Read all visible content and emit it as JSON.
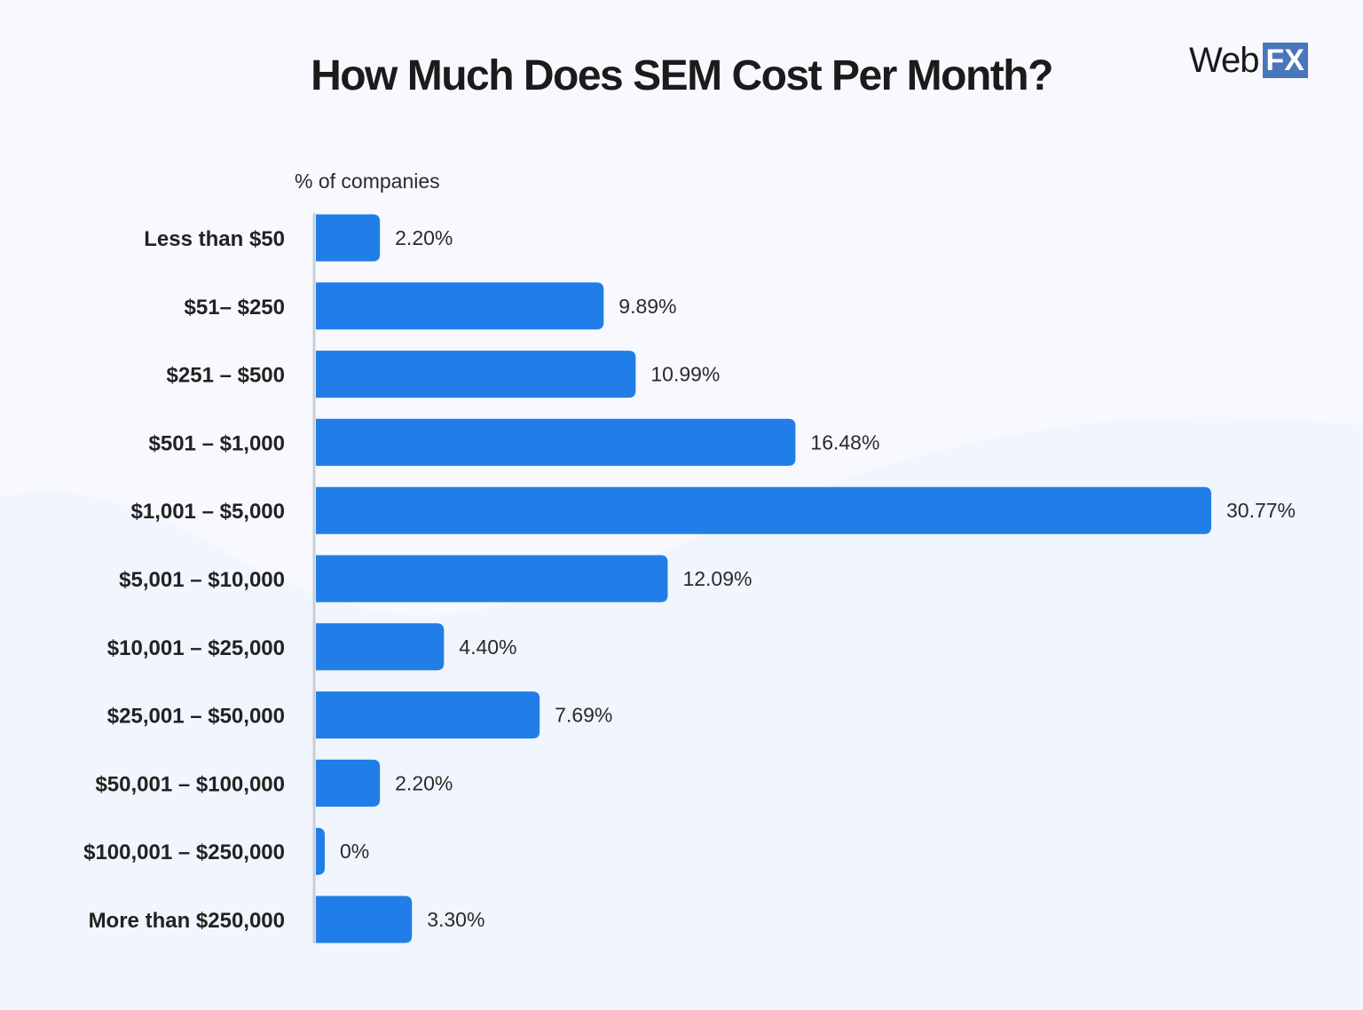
{
  "logo": {
    "text_dark": "Web",
    "text_box": "FX",
    "box_color": "#4a76bd"
  },
  "chart_data": {
    "type": "bar",
    "orientation": "horizontal",
    "title": "How Much Does SEM Cost Per Month?",
    "xlabel": "% of companies",
    "ylabel": "",
    "categories": [
      "Less than $50",
      "$51– $250",
      "$251 – $500",
      "$501 – $1,000",
      "$1,001 – $5,000",
      "$5,001 – $10,000",
      "$10,001 – $25,000",
      "$25,001 – $50,000",
      "$50,001 – $100,000",
      "$100,001 – $250,000",
      "More than $250,000"
    ],
    "values": [
      2.2,
      9.89,
      10.99,
      16.48,
      30.77,
      12.09,
      4.4,
      7.69,
      2.2,
      0,
      3.3
    ],
    "data_labels": [
      "2.20%",
      "9.89%",
      "10.99%",
      "16.48%",
      "30.77%",
      "12.09%",
      "4.40%",
      "7.69%",
      "2.20%",
      "0%",
      "3.30%"
    ],
    "xlim": [
      0,
      30.77
    ],
    "grid": false,
    "legend": "none",
    "bar_color": "#217ee8"
  }
}
